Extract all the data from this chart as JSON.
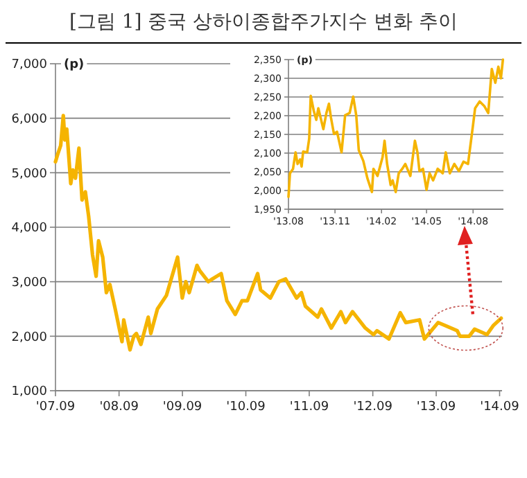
{
  "chart_data": [
    {
      "type": "line",
      "title": "[그림 1] 중국 상하이종합주가지수 변화 추이",
      "ylabel": "(p)",
      "grid": "y",
      "x": [
        "2007-09-01",
        "2007-09-15",
        "2007-10-01",
        "2007-10-16",
        "2007-10-25",
        "2007-11-05",
        "2007-11-28",
        "2007-12-10",
        "2007-12-25",
        "2008-01-14",
        "2008-02-01",
        "2008-02-20",
        "2008-03-10",
        "2008-04-01",
        "2008-04-22",
        "2008-05-06",
        "2008-05-30",
        "2008-06-20",
        "2008-07-10",
        "2008-08-10",
        "2008-09-18",
        "2008-09-28",
        "2008-11-03",
        "2008-11-25",
        "2008-12-10",
        "2009-01-05",
        "2009-02-16",
        "2009-03-03",
        "2009-04-10",
        "2009-06-01",
        "2009-08-04",
        "2009-08-31",
        "2009-09-20",
        "2009-10-10",
        "2009-11-24",
        "2009-12-10",
        "2010-01-28",
        "2010-02-20",
        "2010-04-12",
        "2010-05-15",
        "2010-07-02",
        "2010-08-10",
        "2010-09-10",
        "2010-11-08",
        "2010-11-25",
        "2011-01-20",
        "2011-03-10",
        "2011-04-18",
        "2011-06-20",
        "2011-07-18",
        "2011-08-10",
        "2011-10-20",
        "2011-11-10",
        "2012-01-06",
        "2012-03-01",
        "2012-03-28",
        "2012-05-07",
        "2012-07-20",
        "2012-09-05",
        "2012-09-25",
        "2012-12-03",
        "2013-02-06",
        "2013-03-10",
        "2013-05-28",
        "2013-06-25",
        "2013-09-12",
        "2013-10-20",
        "2013-12-31",
        "2014-01-16",
        "2014-03-10",
        "2014-04-10",
        "2014-06-20",
        "2014-07-28",
        "2014-09-10"
      ],
      "series": [
        {
          "color": "#f5b400",
          "values": [
            5200,
            5350,
            5500,
            6050,
            5600,
            5800,
            4800,
            5050,
            4900,
            5450,
            4500,
            4650,
            4200,
            3500,
            3100,
            3750,
            3450,
            2800,
            2950,
            2500,
            1900,
            2300,
            1750,
            2000,
            2050,
            1850,
            2350,
            2050,
            2500,
            2750,
            3450,
            2700,
            3000,
            2800,
            3300,
            3200,
            3000,
            3050,
            3150,
            2650,
            2400,
            2650,
            2650,
            3150,
            2850,
            2700,
            3000,
            3050,
            2700,
            2800,
            2550,
            2350,
            2500,
            2150,
            2450,
            2250,
            2450,
            2150,
            2030,
            2100,
            1950,
            2430,
            2250,
            2300,
            1950,
            2250,
            2200,
            2100,
            2000,
            2000,
            2130,
            2030,
            2200,
            2330
          ]
        }
      ],
      "xlim": [
        "2007-09-01",
        "2014-09-15"
      ],
      "xticks": [
        {
          "value": "2007-09-01",
          "label": "'07.09"
        },
        {
          "value": "2008-09-01",
          "label": "'08.09"
        },
        {
          "value": "2009-09-01",
          "label": "'09.09"
        },
        {
          "value": "2010-09-01",
          "label": "'10.09"
        },
        {
          "value": "2011-09-01",
          "label": "'11.09"
        },
        {
          "value": "2012-09-01",
          "label": "'12.09"
        },
        {
          "value": "2013-09-01",
          "label": "'13.09"
        },
        {
          "value": "2014-09-01",
          "label": "'14.09"
        }
      ],
      "ylim": [
        1000,
        7000
      ],
      "yticks": [
        {
          "value": 1000,
          "label": "1,000"
        },
        {
          "value": 2000,
          "label": "2,000"
        },
        {
          "value": 3000,
          "label": "3,000"
        },
        {
          "value": 4000,
          "label": "4,000"
        },
        {
          "value": 5000,
          "label": "5,000"
        },
        {
          "value": 6000,
          "label": "6,000"
        },
        {
          "value": 7000,
          "label": "7,000"
        }
      ]
    },
    {
      "type": "line",
      "ylabel": "(p)",
      "grid": "y",
      "x": [
        "2013-08-01",
        "2013-08-04",
        "2013-08-10",
        "2013-08-15",
        "2013-08-19",
        "2013-08-24",
        "2013-08-27",
        "2013-08-30",
        "2013-09-07",
        "2013-09-11",
        "2013-09-14",
        "2013-09-20",
        "2013-09-25",
        "2013-09-29",
        "2013-10-09",
        "2013-10-15",
        "2013-10-20",
        "2013-10-24",
        "2013-10-30",
        "2013-11-05",
        "2013-11-14",
        "2013-11-21",
        "2013-11-30",
        "2013-12-07",
        "2013-12-13",
        "2013-12-18",
        "2013-12-27",
        "2014-01-04",
        "2014-01-13",
        "2014-01-16",
        "2014-01-24",
        "2014-02-03",
        "2014-02-07",
        "2014-02-12",
        "2014-02-19",
        "2014-02-23",
        "2014-03-01",
        "2014-03-07",
        "2014-03-14",
        "2014-03-20",
        "2014-03-30",
        "2014-04-08",
        "2014-04-13",
        "2014-04-17",
        "2014-04-24",
        "2014-05-01",
        "2014-05-07",
        "2014-05-14",
        "2014-05-23",
        "2014-06-02",
        "2014-06-08",
        "2014-06-16",
        "2014-06-25",
        "2014-07-04",
        "2014-07-13",
        "2014-07-22",
        "2014-08-01",
        "2014-08-05",
        "2014-08-14",
        "2014-08-23",
        "2014-08-31",
        "2014-09-07",
        "2014-09-14",
        "2014-09-20",
        "2014-09-25",
        "2014-09-29"
      ],
      "series": [
        {
          "color": "#f5b400",
          "values": [
            1983,
            2046,
            2058,
            2102,
            2071,
            2083,
            2064,
            2104,
            2102,
            2139,
            2253,
            2213,
            2189,
            2220,
            2164,
            2207,
            2232,
            2195,
            2151,
            2157,
            2102,
            2201,
            2207,
            2251,
            2201,
            2108,
            2079,
            2033,
            1996,
            2058,
            2039,
            2089,
            2133,
            2071,
            2015,
            2027,
            1996,
            2046,
            2058,
            2071,
            2039,
            2133,
            2102,
            2052,
            2058,
            2002,
            2046,
            2027,
            2058,
            2046,
            2102,
            2046,
            2071,
            2052,
            2077,
            2071,
            2176,
            2220,
            2238,
            2226,
            2207,
            2325,
            2288,
            2331,
            2300,
            2350
          ]
        }
      ],
      "xlim": [
        "2013-08-01",
        "2014-09-30"
      ],
      "xticks": [
        {
          "value": "2013-08-01",
          "label": "'13.08"
        },
        {
          "value": "2013-11-01",
          "label": "'13.11"
        },
        {
          "value": "2014-02-01",
          "label": "'14.02"
        },
        {
          "value": "2014-05-01",
          "label": "'14.05"
        },
        {
          "value": "2014-08-01",
          "label": "'14.08"
        }
      ],
      "ylim": [
        1950,
        2350
      ],
      "yticks": [
        {
          "value": 1950,
          "label": "1,950"
        },
        {
          "value": 2000,
          "label": "2,000"
        },
        {
          "value": 2050,
          "label": "2,050"
        },
        {
          "value": 2100,
          "label": "2,100"
        },
        {
          "value": 2150,
          "label": "2,150"
        },
        {
          "value": 2200,
          "label": "2,200"
        },
        {
          "value": 2250,
          "label": "2,250"
        },
        {
          "value": 2300,
          "label": "2,300"
        },
        {
          "value": 2350,
          "label": "2,350"
        }
      ]
    }
  ]
}
